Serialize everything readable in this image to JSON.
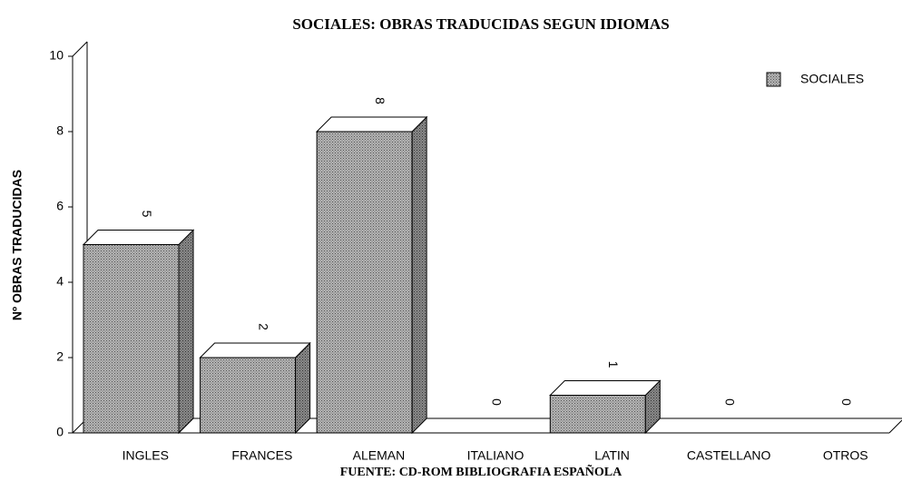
{
  "chart_data": {
    "type": "bar3d",
    "title": "SOCIALES: OBRAS TRADUCIDAS SEGUN IDIOMAS",
    "y_label": "Nº OBRAS TRADUCIDAS",
    "source": "FUENTE: CD-ROM BIBLIOGRAFIA ESPAÑOLA",
    "categories": [
      "INGLES",
      "FRANCES",
      "ALEMAN",
      "ITALIANO",
      "LATIN",
      "CASTELLANO",
      "OTROS"
    ],
    "series": [
      {
        "name": "SOCIALES",
        "color": "#a0a0a0",
        "values": [
          5,
          2,
          8,
          0,
          1,
          0,
          0
        ]
      }
    ],
    "ylim": [
      0,
      10
    ],
    "yticks": [
      0,
      2,
      4,
      6,
      8,
      10
    ],
    "legend": "top-right"
  }
}
